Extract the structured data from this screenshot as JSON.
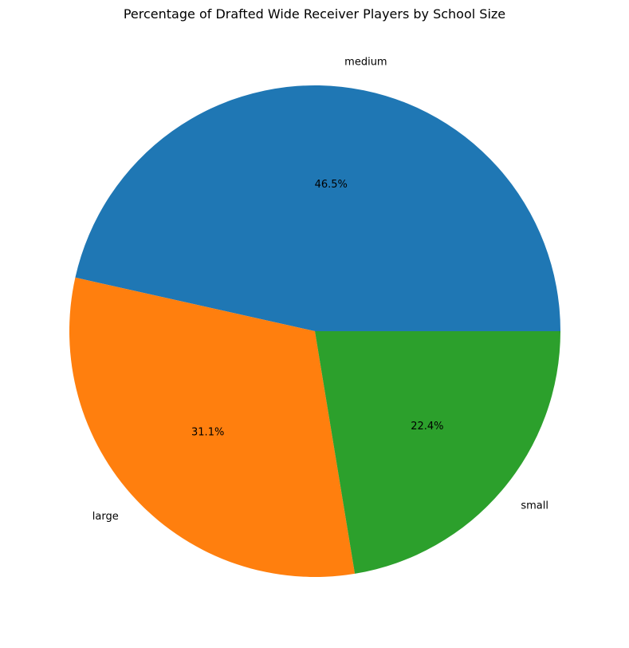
{
  "chart_data": {
    "type": "pie",
    "title": "Percentage of Drafted Wide Receiver Players by School Size",
    "slices": [
      {
        "label": "medium",
        "value": 46.5,
        "pct_label": "46.5%",
        "color": "#1f77b4"
      },
      {
        "label": "large",
        "value": 31.1,
        "pct_label": "31.1%",
        "color": "#ff7f0e"
      },
      {
        "label": "small",
        "value": 22.4,
        "pct_label": "22.4%",
        "color": "#2ca02c"
      }
    ],
    "start_angle_deg": 0,
    "direction": "counterclockwise"
  }
}
